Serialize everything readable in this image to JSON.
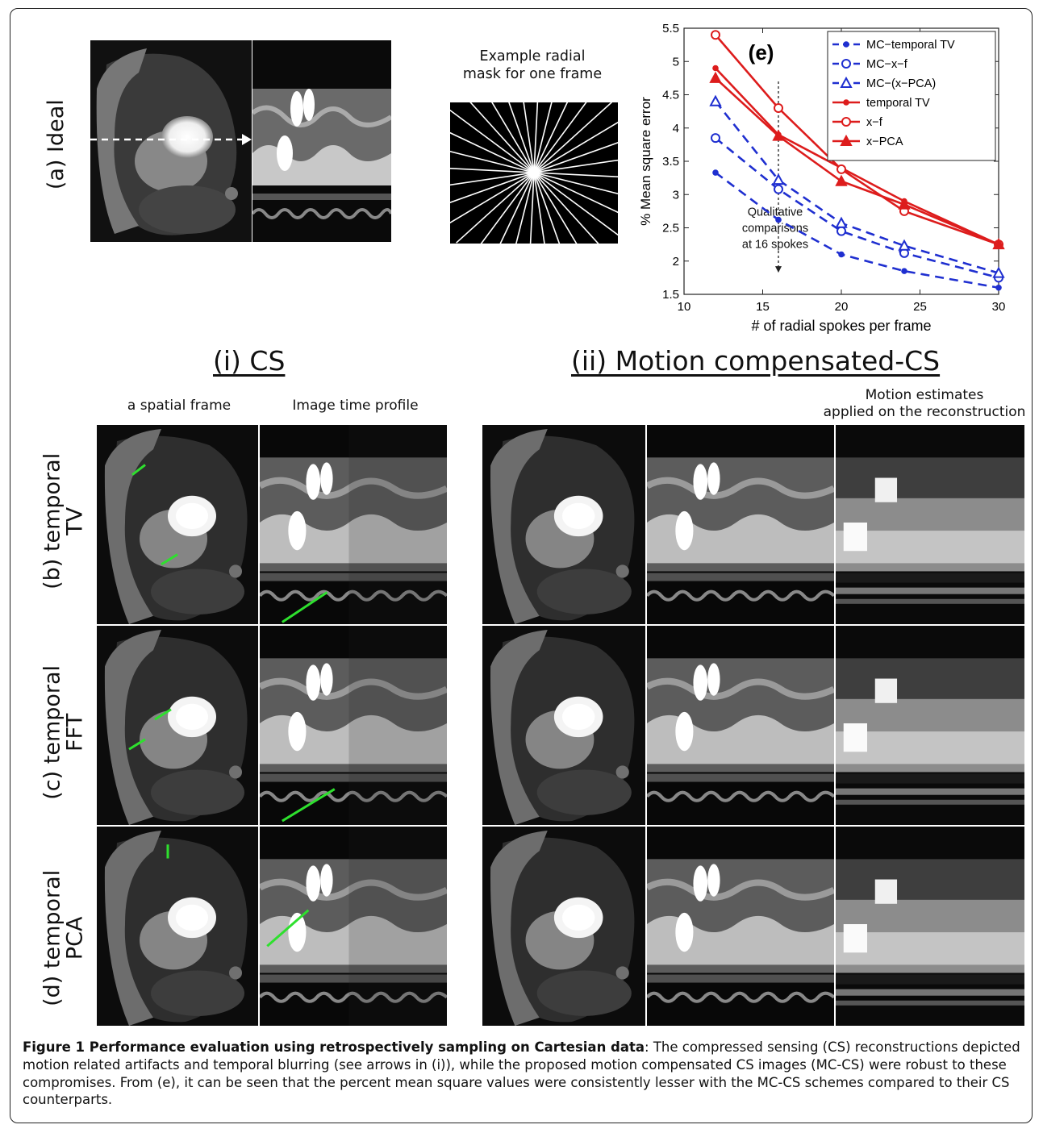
{
  "panel_a": {
    "row_label": "(a) Ideal",
    "mask_title": "Example radial\nmask for one frame",
    "mask_title_l1": "Example radial",
    "mask_title_l2": "mask for one frame"
  },
  "section_headers": {
    "cs": "(i) CS",
    "mccs": "(ii) Motion compensated-CS"
  },
  "column_labels": {
    "spatial": "a spatial frame",
    "profile": "Image time profile",
    "motion_l1": "Motion estimates",
    "motion_l2": "applied on the reconstruction"
  },
  "rows": [
    {
      "label_l1": "(b) temporal",
      "label_l2": "TV"
    },
    {
      "label_l1": "(c) temporal",
      "label_l2": "FFT"
    },
    {
      "label_l1": "(d) temporal",
      "label_l2": "PCA"
    }
  ],
  "chart_data": {
    "type": "line",
    "panel_label": "(e)",
    "xlabel": "# of radial spokes per frame",
    "ylabel": "% Mean square error",
    "xlim": [
      10,
      30
    ],
    "ylim": [
      1.5,
      5.5
    ],
    "xticks": [
      "10",
      "15",
      "20",
      "25",
      "30"
    ],
    "yticks": [
      "1.5",
      "2",
      "2.5",
      "3",
      "3.5",
      "4",
      "4.5",
      "5",
      "5.5"
    ],
    "x": [
      12,
      16,
      20,
      24,
      30
    ],
    "legend_position": "top-right",
    "annotation_l1": "Qualitative",
    "annotation_l2": "comparisons",
    "annotation_l3": "at 16 spokes",
    "series": [
      {
        "name": "MC−temporal TV",
        "color": "#1f2fd0",
        "dash": true,
        "marker": "dot",
        "values": [
          3.33,
          2.62,
          2.1,
          1.85,
          1.6
        ]
      },
      {
        "name": "MC−x−f",
        "color": "#1f2fd0",
        "dash": true,
        "marker": "circle",
        "values": [
          3.85,
          3.08,
          2.45,
          2.12,
          1.75
        ]
      },
      {
        "name": "MC−(x−PCA)",
        "color": "#1f2fd0",
        "dash": true,
        "marker": "triangle",
        "values": [
          4.4,
          3.22,
          2.57,
          2.23,
          1.82
        ]
      },
      {
        "name": "temporal TV",
        "color": "#dd1c1c",
        "dash": false,
        "marker": "dot",
        "values": [
          4.9,
          3.9,
          3.4,
          2.9,
          2.25
        ]
      },
      {
        "name": "x−f",
        "color": "#dd1c1c",
        "dash": false,
        "marker": "circle",
        "values": [
          5.4,
          4.3,
          3.38,
          2.75,
          2.25
        ]
      },
      {
        "name": "x−PCA",
        "color": "#dd1c1c",
        "dash": false,
        "marker": "triangle",
        "values": [
          4.75,
          3.88,
          3.2,
          2.85,
          2.25
        ]
      }
    ]
  },
  "caption": {
    "bold": "Figure 1 Performance evaluation using retrospectively sampling on Cartesian data",
    "text": ": The compressed sensing (CS) reconstructions depicted motion related artifacts and temporal blurring (see arrows in (i)), while the proposed motion compensated CS images (MC-CS) were robust to these compromises. From (e), it can be seen that the percent mean square values were consistently lesser with the MC-CS schemes compared to their CS counterparts."
  }
}
